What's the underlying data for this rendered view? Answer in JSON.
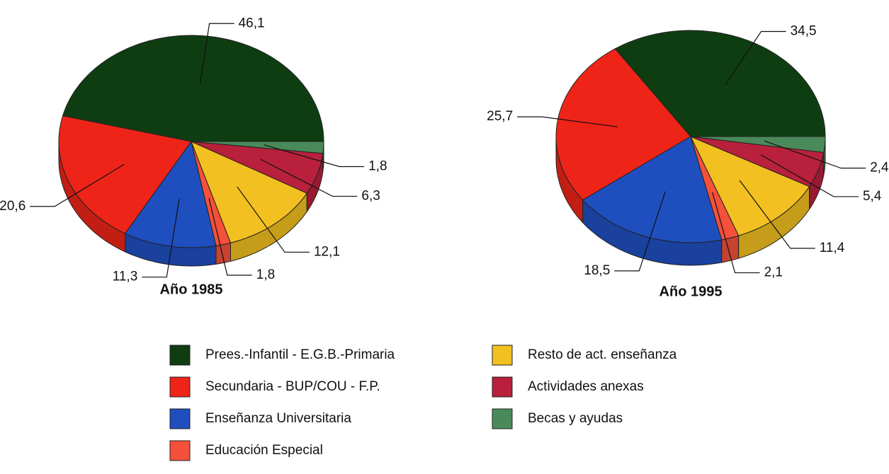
{
  "chart_data": [
    {
      "type": "pie",
      "title": "Año 1985",
      "categories": [
        "Prees.-Infantil - E.G.B.-Primaria",
        "Secundaria - BUP/COU - F.P.",
        "Enseñanza Universitaria",
        "Educación Especial",
        "Resto de act. enseñanza",
        "Actividades anexas",
        "Becas y ayudas"
      ],
      "values": [
        46.1,
        20.6,
        11.3,
        1.8,
        12.1,
        6.3,
        1.8
      ],
      "value_labels": [
        "46,1",
        "20,6",
        "11,3",
        "1,8",
        "12,1",
        "6,3",
        "1,8"
      ],
      "colors": [
        "#0f3d12",
        "#ee2418",
        "#1f4fbf",
        "#f4503a",
        "#f2c020",
        "#b8203c",
        "#4a8a5a"
      ]
    },
    {
      "type": "pie",
      "title": "Año 1995",
      "categories": [
        "Prees.-Infantil - E.G.B.-Primaria",
        "Secundaria - BUP/COU - F.P.",
        "Enseñanza Universitaria",
        "Educación Especial",
        "Resto de act. enseñanza",
        "Actividades anexas",
        "Becas y ayudas"
      ],
      "values": [
        34.5,
        25.7,
        18.5,
        2.1,
        11.4,
        5.4,
        2.4
      ],
      "value_labels": [
        "34,5",
        "25,7",
        "18,5",
        "2,1",
        "11,4",
        "5,4",
        "2,4"
      ],
      "colors": [
        "#0f3d12",
        "#ee2418",
        "#1f4fbf",
        "#f4503a",
        "#f2c020",
        "#b8203c",
        "#4a8a5a"
      ]
    }
  ]
}
